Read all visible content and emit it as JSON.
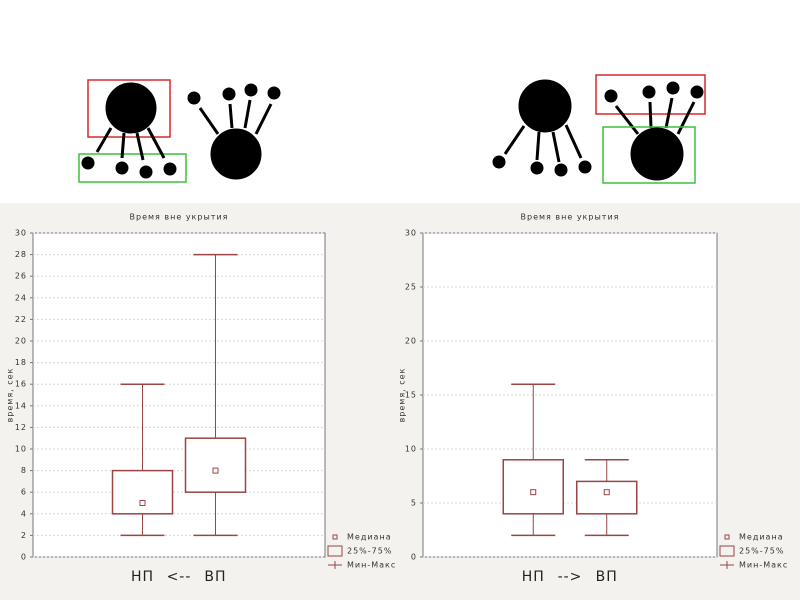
{
  "chart_data": [
    {
      "type": "box",
      "title": "Время вне укрытия",
      "ylabel": "время, сек",
      "categories": [
        "НП",
        "ВП"
      ],
      "annotation": "<--",
      "boxes": [
        {
          "min": 2,
          "q1": 4,
          "median": 5,
          "q3": 8,
          "max": 16
        },
        {
          "min": 2,
          "q1": 6,
          "median": 8,
          "q3": 11,
          "max": 28
        }
      ],
      "color": "#9b4444",
      "ylim": [
        0,
        30
      ],
      "yticks": [
        0,
        2,
        4,
        6,
        8,
        10,
        12,
        14,
        16,
        18,
        20,
        22,
        24,
        26,
        28,
        30
      ],
      "grid": true,
      "legend": [
        "Медиана",
        "25%-75%",
        "Мин-Макс"
      ]
    },
    {
      "type": "box",
      "title": "Время вне укрытия",
      "ylabel": "время, сек",
      "categories": [
        "НП",
        "ВП"
      ],
      "annotation": "-->",
      "boxes": [
        {
          "min": 2,
          "q1": 4,
          "median": 6,
          "q3": 9,
          "max": 16
        },
        {
          "min": 2,
          "q1": 4,
          "median": 6,
          "q3": 7,
          "max": 9
        }
      ],
      "color": "#9b4444",
      "ylim": [
        0,
        30
      ],
      "yticks": [
        0,
        5,
        10,
        15,
        20,
        25,
        30
      ],
      "grid": true,
      "legend": [
        "Медиана",
        "25%-75%",
        "Мин-Макс"
      ]
    }
  ]
}
